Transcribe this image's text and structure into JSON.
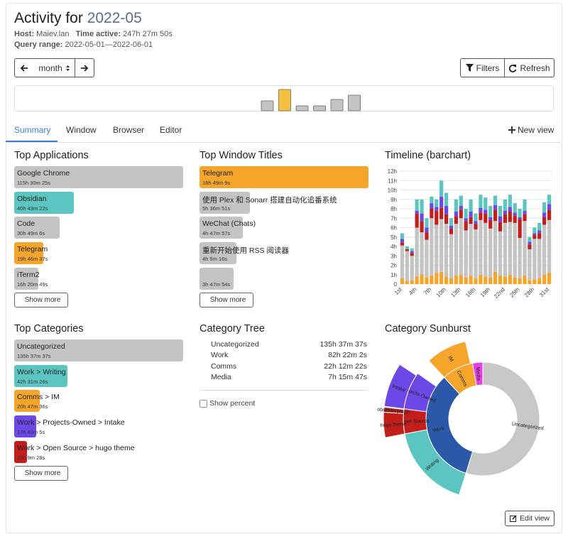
{
  "header": {
    "title_prefix": "Activity for",
    "title_period": "2022-05",
    "host_label": "Host:",
    "host": "Maiev.lan",
    "time_active_label": "Time active:",
    "time_active": "247h 27m 50s",
    "query_range_label": "Query range:",
    "query_range": "2022-05-01—2022-06-01"
  },
  "controls": {
    "period": "month",
    "filters": "Filters",
    "refresh": "Refresh"
  },
  "period_chart": {
    "values": [
      14,
      30,
      7,
      7,
      16,
      22
    ],
    "colors": [
      "#c4c4c4",
      "#f5c040",
      "#c4c4c4",
      "#c4c4c4",
      "#c4c4c4",
      "#c4c4c4"
    ]
  },
  "tabs": [
    "Summary",
    "Window",
    "Browser",
    "Editor"
  ],
  "new_view": "New view",
  "top_applications": {
    "title": "Top Applications",
    "show_more": "Show more",
    "items": [
      {
        "name": "Google Chrome",
        "duration": "115h 30m 25s",
        "hours": 115.5069,
        "color": "#c4c4c4"
      },
      {
        "name": "Obsidian",
        "duration": "40h 43m 22s",
        "hours": 40.7228,
        "color": "#5bc6c1"
      },
      {
        "name": "Code",
        "duration": "30h 49m 6s",
        "hours": 30.8183,
        "color": "#c4c4c4"
      },
      {
        "name": "Telegram",
        "duration": "19h 46m 37s",
        "hours": 19.7769,
        "color": "#f5a52a"
      },
      {
        "name": "iTerm2",
        "duration": "16h 20m 49s",
        "hours": 16.3469,
        "color": "#c4c4c4"
      }
    ]
  },
  "top_window_titles": {
    "title": "Top Window Titles",
    "show_more": "Show more",
    "items": [
      {
        "name": "Telegram",
        "duration": "18h 49m 9s",
        "hours": 18.8192,
        "color": "#f5a52a"
      },
      {
        "name": "使用 Plex 和 Sonarr 搭建自动化追番系统",
        "duration": "5h 36m 51s",
        "hours": 5.6142,
        "color": "#c4c4c4"
      },
      {
        "name": "WeChat (Chats)",
        "duration": "4h 47m 57s",
        "hours": 4.7992,
        "color": "#c4c4c4"
      },
      {
        "name": "重新开始使用 RSS 阅读器",
        "duration": "4h 5m 16s",
        "hours": 4.0878,
        "color": "#c4c4c4"
      },
      {
        "name": null,
        "duration": "3h 47m 54s",
        "hours": 3.7983,
        "color": "#c4c4c4"
      }
    ]
  },
  "top_categories": {
    "title": "Top Categories",
    "show_more": "Show more",
    "items": [
      {
        "name": "Uncategorized",
        "duration": "135h 37m 37s",
        "hours": 135.6269,
        "color": "#c4c4c4"
      },
      {
        "name": "Work > Writing",
        "duration": "42h 31m 26s",
        "hours": 42.5239,
        "color": "#5bc6c1"
      },
      {
        "name": "Comms > IM",
        "duration": "20h 47m 36s",
        "hours": 20.7933,
        "color": "#f5a52a"
      },
      {
        "name": "Work > Projects-Owned > Intake",
        "duration": "17h 49m 5s",
        "hours": 17.8181,
        "color": "#6e47e8"
      },
      {
        "name": "Work > Open Source > hugo theme",
        "duration": "10h 9m 28s",
        "hours": 10.1578,
        "color": "#c41e1a"
      }
    ]
  },
  "category_tree": {
    "title": "Category Tree",
    "show_percent": "Show percent",
    "rows": [
      {
        "name": "Uncategorized",
        "duration": "135h 37m 37s"
      },
      {
        "name": "Work",
        "duration": "82h 22m 2s"
      },
      {
        "name": "Comms",
        "duration": "22h 12m 22s"
      },
      {
        "name": "Media",
        "duration": "7h 15m 47s"
      }
    ]
  },
  "chart_data": [
    {
      "type": "bar",
      "stacked": true,
      "title": "Timeline (barchart)",
      "grid": true,
      "categories": [
        "1st",
        null,
        null,
        "4th",
        null,
        null,
        "7th",
        null,
        null,
        "10th",
        null,
        null,
        "13th",
        null,
        null,
        "16th",
        null,
        null,
        "19th",
        null,
        null,
        "22nd",
        null,
        null,
        "25th",
        null,
        null,
        "28th",
        null,
        null,
        "31st"
      ],
      "ylim": [
        0,
        12
      ],
      "yticks": [
        0,
        {
          "value": 1,
          "label": "1h"
        },
        {
          "value": 2,
          "label": "2h"
        },
        {
          "value": 3,
          "label": "3h"
        },
        {
          "value": 4,
          "label": "4h"
        },
        {
          "value": 5,
          "label": "5h"
        },
        {
          "value": 6,
          "label": "6h"
        },
        {
          "value": 7,
          "label": "7h"
        },
        {
          "value": 8,
          "label": "8h"
        },
        {
          "value": 9,
          "label": "9h"
        },
        {
          "value": 10,
          "label": "10h"
        },
        {
          "value": 11,
          "label": "11h"
        },
        {
          "value": 12,
          "label": "12h"
        }
      ],
      "series": [
        {
          "color": "#f5a52a",
          "values": [
            0.6,
            0.3,
            0.4,
            0.8,
            1.0,
            0.7,
            0.9,
            1.2,
            1.3,
            0.8,
            0.6,
            0.9,
            1.0,
            0.7,
            0.9,
            0.6,
            1.0,
            0.8,
            0.7,
            1.3,
            0.9,
            0.8,
            1.0,
            0.7,
            0.6,
            0.9,
            0.4,
            0.5,
            0.6,
            1.0,
            1.2
          ]
        },
        {
          "color": "#c4c4c4",
          "values": [
            3.5,
            3.2,
            2.6,
            5.2,
            4.5,
            4.0,
            6.1,
            5.1,
            5.6,
            5.6,
            4.7,
            5.5,
            6.0,
            5.0,
            5.5,
            5.2,
            5.8,
            5.7,
            5.2,
            5.4,
            4.7,
            5.7,
            5.6,
            5.8,
            4.3,
            5.8,
            3.3,
            4.3,
            4.2,
            5.3,
            5.6
          ]
        },
        {
          "color": "#c41e1a",
          "values": [
            0.3,
            0.2,
            0.3,
            1.5,
            1.2,
            0.8,
            1.0,
            1.5,
            1.2,
            1.0,
            0.6,
            0.8,
            0.9,
            1.0,
            0.7,
            0.6,
            0.8,
            1.0,
            0.9,
            1.2,
            1.0,
            0.9,
            1.1,
            0.8,
            2.0,
            0.7,
            0.5,
            0.4,
            0.6,
            0.8,
            1.1
          ]
        },
        {
          "color": "#6e47e8",
          "values": [
            0.4,
            0,
            0.2,
            0.3,
            0.8,
            0.5,
            0.6,
            0.4,
            1.2,
            0.9,
            0.3,
            0.5,
            0.4,
            0.3,
            0.6,
            0.3,
            0.5,
            0.4,
            0.3,
            0.5,
            0.6,
            0.4,
            0.5,
            0.3,
            0.2,
            0.4,
            0.3,
            0.2,
            0.3,
            0.5,
            0.6
          ]
        },
        {
          "color": "#5bc6c1",
          "values": [
            0.6,
            0.3,
            0.3,
            1.2,
            1.5,
            1.0,
            0.7,
            0.8,
            1.7,
            1.4,
            0.8,
            1.3,
            1.1,
            1.0,
            1.3,
            0.8,
            1.4,
            1.3,
            1.2,
            1.0,
            1.1,
            1.2,
            1.3,
            1.0,
            0.9,
            1.2,
            0.5,
            0.6,
            0.8,
            1.1,
            1.0
          ]
        }
      ]
    },
    {
      "type": "sunburst",
      "title": "Category Sunburst",
      "nodes": [
        {
          "name": "Uncategorized",
          "value": 135.6269,
          "color": "#c8c8c8"
        },
        {
          "name": "Work",
          "value": 82.3672,
          "color": "#2b58a8",
          "children": [
            {
              "name": "Writing",
              "value": 42.5239,
              "color": "#5bc6c1"
            },
            {
              "name": "Open Source",
              "value": 12.5,
              "color": "#c41e1a",
              "children": [
                {
                  "name": "hugo theme",
                  "value": 10.1578,
                  "color": "#c41e1a"
                },
                {
                  "name": "obsidian plugin",
                  "value": 2,
                  "color": "#b51d19"
                }
              ]
            },
            {
              "name": "Projects-Owned",
              "value": 19,
              "color": "#6e47e8",
              "children": [
                {
                  "name": "Intake",
                  "value": 17.8181,
                  "color": "#6e47e8"
                }
              ]
            }
          ]
        },
        {
          "name": "Comms",
          "value": 22.2061,
          "color": "#f5a52a",
          "children": [
            {
              "name": "IM",
              "value": 20.7933,
              "color": "#f5a52a"
            }
          ]
        },
        {
          "name": "Media",
          "value": 7.2631,
          "color": "#e83ee8"
        }
      ]
    }
  ],
  "edit_view": "Edit view"
}
